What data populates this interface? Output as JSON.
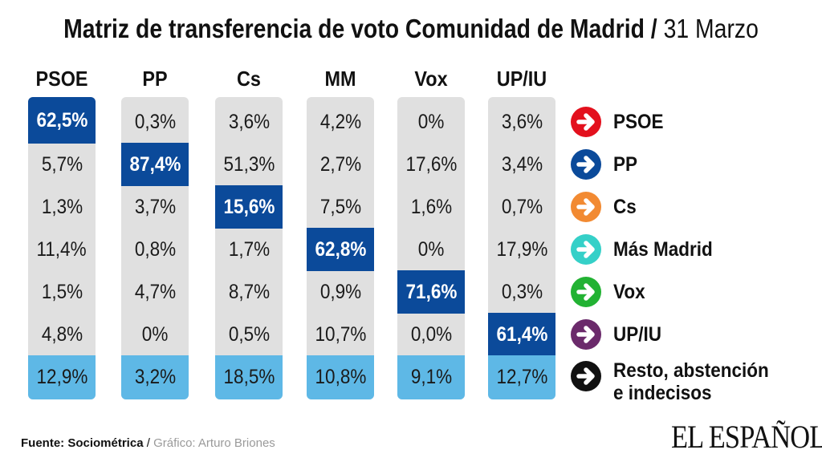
{
  "title": {
    "bold": "Matriz de transferencia de voto Comunidad de Madrid",
    "separator": "/",
    "date": "31 Marzo"
  },
  "colors": {
    "highlight": "#0b4a9a",
    "rest_row": "#5eb8e6",
    "column_bg": "#e0e0e0"
  },
  "chart_data": {
    "type": "table",
    "title": "Matriz de transferencia de voto Comunidad de Madrid / 31 Marzo",
    "columns": [
      "PSOE",
      "PP",
      "Cs",
      "MM",
      "Vox",
      "UP/IU"
    ],
    "rows": [
      "PSOE",
      "PP",
      "Cs",
      "Más Madrid",
      "Vox",
      "UP/IU",
      "Resto, abstención e indecisos"
    ],
    "cells": [
      [
        "62,5%",
        "0,3%",
        "3,6%",
        "4,2%",
        "0%",
        "3,6%"
      ],
      [
        "5,7%",
        "87,4%",
        "51,3%",
        "2,7%",
        "17,6%",
        "3,4%"
      ],
      [
        "1,3%",
        "3,7%",
        "15,6%",
        "7,5%",
        "1,6%",
        "0,7%"
      ],
      [
        "11,4%",
        "0,8%",
        "1,7%",
        "62,8%",
        "0%",
        "17,9%"
      ],
      [
        "1,5%",
        "4,7%",
        "8,7%",
        "0,9%",
        "71,6%",
        "0,3%"
      ],
      [
        "4,8%",
        "0%",
        "0,5%",
        "10,7%",
        "0,0%",
        "61,4%"
      ],
      [
        "12,9%",
        "3,2%",
        "18,5%",
        "10,8%",
        "9,1%",
        "12,7%"
      ]
    ]
  },
  "legend": [
    {
      "label": "PSOE",
      "color": "#e3101d",
      "icon": "arrow-right-circle-icon"
    },
    {
      "label": "PP",
      "color": "#0b4a9a",
      "icon": "arrow-right-circle-icon"
    },
    {
      "label": "Cs",
      "color": "#f28a32",
      "icon": "arrow-right-circle-icon"
    },
    {
      "label": "Más Madrid",
      "color": "#35d0c8",
      "icon": "arrow-right-circle-icon"
    },
    {
      "label": "Vox",
      "color": "#22b233",
      "icon": "arrow-right-circle-icon"
    },
    {
      "label": "UP/IU",
      "color": "#6b2a6b",
      "icon": "arrow-right-circle-icon"
    },
    {
      "label_line1": "Resto, abstención",
      "label_line2": "e indecisos",
      "color": "#111111",
      "icon": "arrow-right-circle-icon"
    }
  ],
  "footer": {
    "source": "Fuente: Sociométrica",
    "separator": "/",
    "credit": "Gráfico: Arturo Briones"
  },
  "logo": "EL ESPAÑOL"
}
